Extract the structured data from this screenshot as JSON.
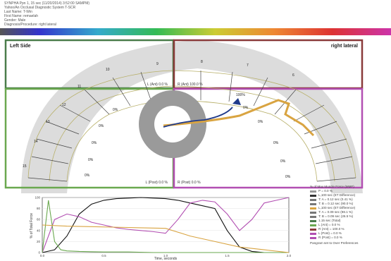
{
  "header": {
    "lines": [
      "SYNPHA Ppn 1, 15 sec (11/20/2014) 3:52:00 SAMPM)",
      "Yahoo/An Occlusal Diagnostic System T-SCR",
      "Last Name: T-Win",
      "First Name: remaelah",
      "Gender: Male",
      "Diagnosis/Procedure: right lateral"
    ]
  },
  "colors": {
    "left_side_box": "#4a7c4a",
    "right_lateral_box": "#8a3a3a",
    "left_anterior_box": "#6aa84f",
    "right_anterior_box": "#b24fb2",
    "trajectory": "#d9a441",
    "cof_path": "#1f3a8a"
  },
  "arch": {
    "left_label": "Left Side",
    "right_label": "right lateral",
    "left_force_label": "L (Ant) 0.0 %",
    "right_force_label": "R (Ant) 100.0 %",
    "left_post_label": "L (Post) 0.0 %",
    "right_post_label": "R (Post) 0.0 %",
    "tooth_numbers_upper": [
      "10",
      "9",
      "8",
      "7",
      "6"
    ],
    "tooth_numbers_left": [
      "11",
      "12",
      "13",
      "14",
      "15"
    ],
    "percent_marker": "100%",
    "zero_labels_left": [
      "0%",
      "0%",
      "0%",
      "0%",
      "0%"
    ],
    "zero_labels_right": [
      "0%",
      "0%",
      "0%",
      "0%",
      "0%"
    ]
  },
  "chart": {
    "ylabel": "% of Total Force",
    "xlabel": "Time, seconds",
    "y_ticks": [
      "100",
      "80",
      "60",
      "40",
      "20",
      "0"
    ],
    "x_ticks": [
      "0.0",
      "0.5",
      "1.0",
      "1.5",
      "2.0"
    ]
  },
  "legend": {
    "title": "% of Max Muscle Force (MMF)",
    "entries": [
      {
        "label": "P = 0.0 %",
        "color": "#999999"
      },
      {
        "label": "L,100 sec (ET Difference)",
        "color": "#333333"
      },
      {
        "label": "T: A = 0.12 sec (0.41 %)",
        "color": "#777777"
      },
      {
        "label": "T: B = 0.12 sec (90.0 %)",
        "color": "#777777"
      },
      {
        "label": "L,100 sec (ET Difference)",
        "color": "#d9a441"
      },
      {
        "label": "T: A = 0.09 sec (98.1 %)",
        "color": "#777777"
      },
      {
        "label": "T: B = 0.09 sec (26.5 %)",
        "color": "#777777"
      },
      {
        "label": "1.15 sec (Total)",
        "color": "#4a7c4a"
      },
      {
        "label": "L (Ant) = 0.0 %",
        "color": "#6aa84f"
      },
      {
        "label": "R (Ant) = 100.0 %",
        "color": "#8a3a3a"
      },
      {
        "label": "L (Post) = 0.0 %",
        "color": "#b24fb2"
      },
      {
        "label": "R (Post) = 0.0 %",
        "color": "#b24fb2"
      }
    ],
    "footer": "Pangram set to Over Preferences"
  },
  "chart_data": {
    "type": "line",
    "xlabel": "Time, seconds",
    "ylabel": "% of Total Force",
    "ylim": [
      0,
      100
    ],
    "series": [
      {
        "name": "",
        "color": "#111111",
        "x": [
          0.0,
          0.1,
          0.2,
          0.3,
          0.4,
          0.5,
          0.6,
          0.7,
          0.8,
          0.9,
          1.0,
          1.1,
          1.2,
          1.3,
          1.4,
          1.5,
          1.6,
          1.7,
          1.8,
          1.9,
          2.0
        ],
        "y": [
          0,
          5,
          30,
          70,
          88,
          95,
          98,
          99,
          100,
          99,
          98,
          95,
          90,
          85,
          80,
          40,
          10,
          2,
          0,
          0,
          0
        ]
      },
      {
        "name": "",
        "color": "#b24fb2",
        "x": [
          0.0,
          0.1,
          0.2,
          0.3,
          0.4,
          0.5,
          0.6,
          0.7,
          0.8,
          0.9,
          1.0,
          1.1,
          1.2,
          1.3,
          1.4,
          1.5,
          1.6,
          1.7,
          1.8,
          1.9,
          2.0
        ],
        "y": [
          0,
          60,
          70,
          65,
          55,
          50,
          45,
          42,
          40,
          38,
          35,
          60,
          90,
          95,
          92,
          70,
          40,
          60,
          90,
          95,
          100
        ]
      },
      {
        "name": "",
        "color": "#6aa84f",
        "x": [
          0.0,
          0.05,
          0.1,
          0.15,
          0.2,
          0.3,
          0.5,
          0.7,
          0.9,
          1.1,
          1.3,
          1.5,
          1.7,
          1.9,
          2.0
        ],
        "y": [
          0,
          95,
          20,
          5,
          3,
          2,
          1,
          1,
          0,
          0,
          0,
          0,
          0,
          0,
          0
        ]
      },
      {
        "name": "",
        "color": "#d9a441",
        "x": [
          0.0,
          0.2,
          0.4,
          0.6,
          0.8,
          1.0,
          1.2,
          1.4,
          1.6,
          1.8,
          2.0
        ],
        "y": [
          50,
          48,
          47,
          46,
          45,
          44,
          30,
          20,
          10,
          5,
          0
        ]
      }
    ]
  }
}
